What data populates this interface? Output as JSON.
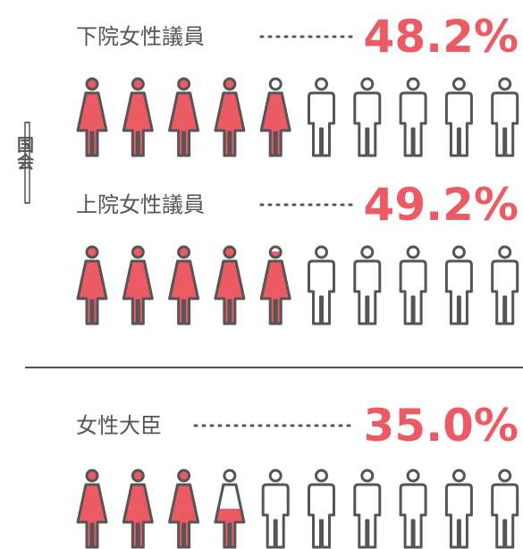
{
  "side_label": "国会",
  "chart_data": [
    {
      "type": "pictogram",
      "title": "下院女性議員",
      "values": [
        48.2
      ],
      "value_labels": [
        "48.2%"
      ],
      "color": "#ec5b63"
    },
    {
      "type": "pictogram",
      "title": "上院女性議員",
      "values": [
        49.2
      ],
      "value_labels": [
        "49.2%"
      ],
      "color": "#ec5b63"
    },
    {
      "type": "pictogram",
      "title": "女性大臣",
      "values": [
        35.0
      ],
      "value_labels": [
        "35.0%"
      ],
      "color": "#ec5b63"
    }
  ]
}
